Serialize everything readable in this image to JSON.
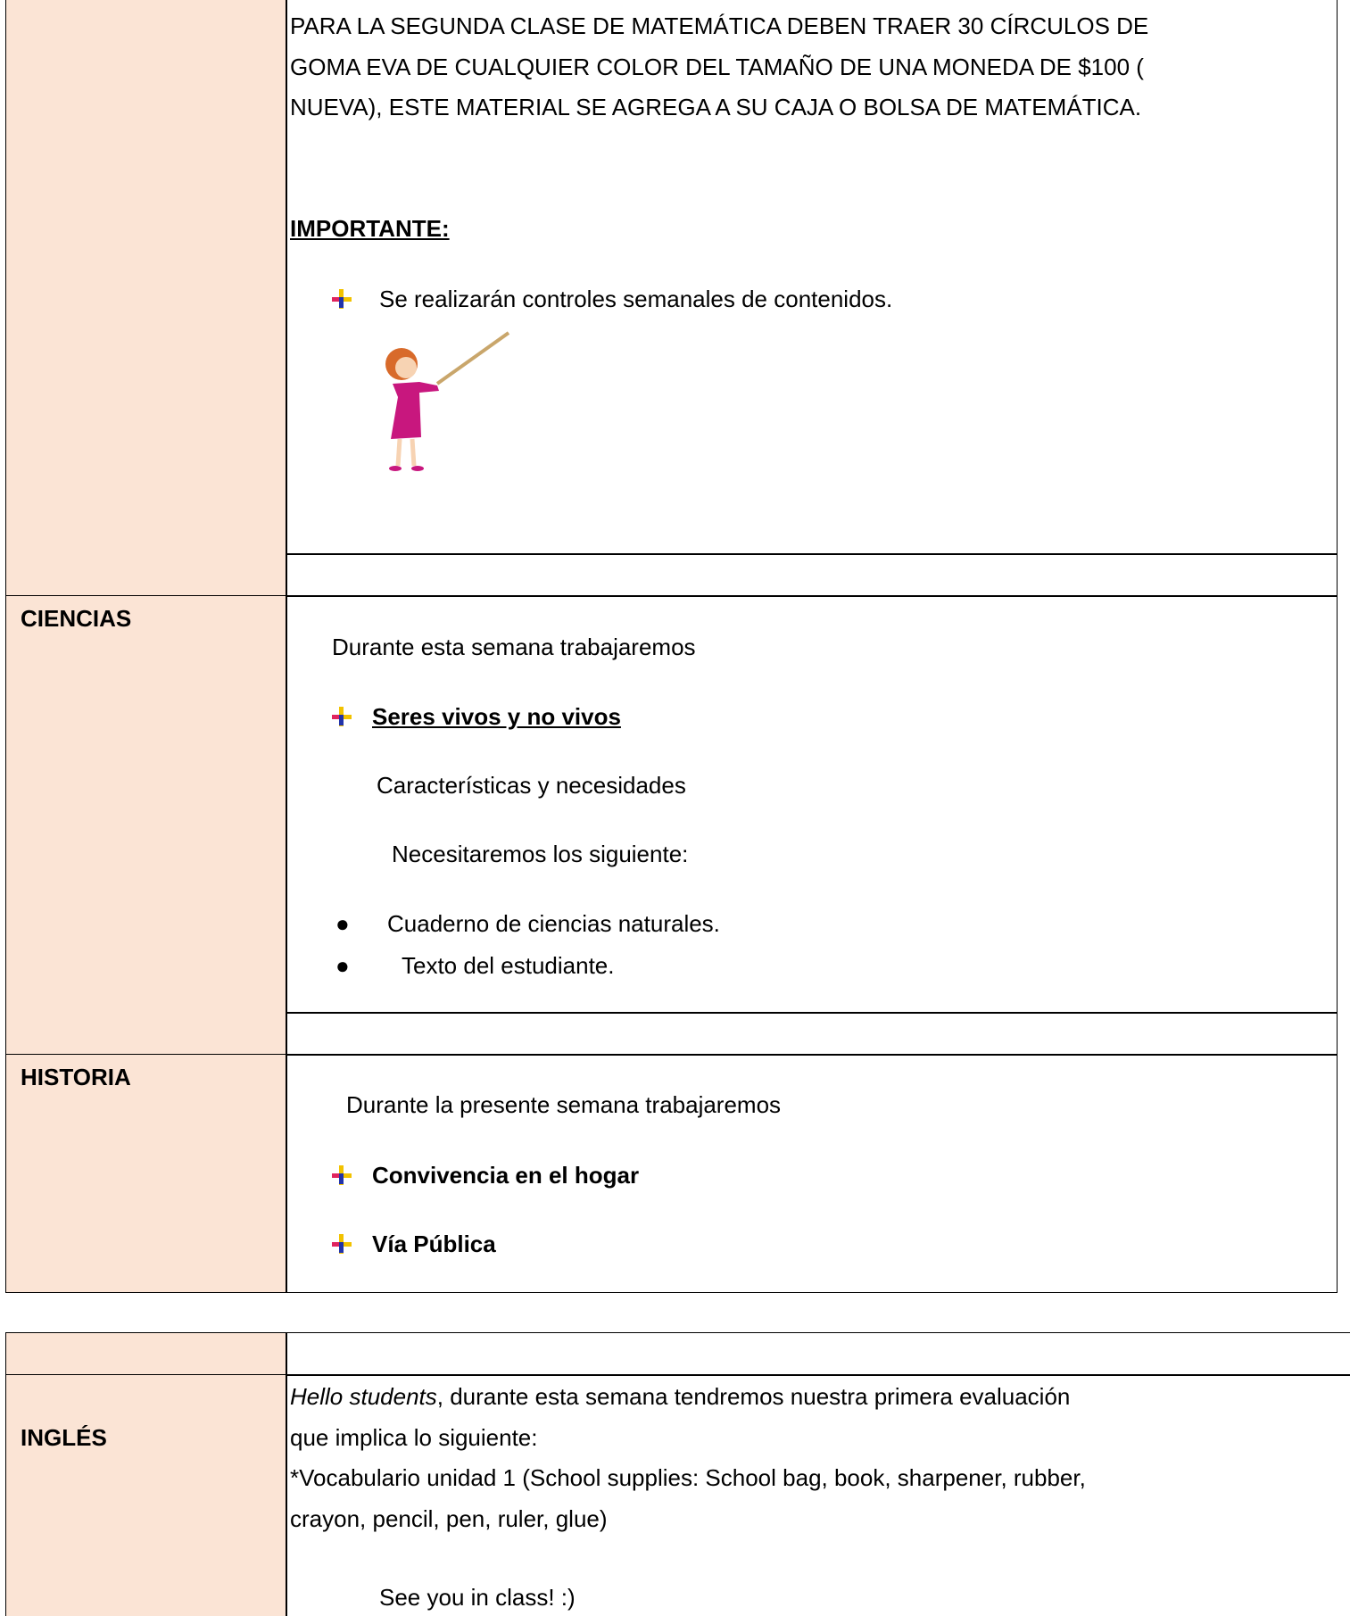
{
  "matematica": {
    "paragraph_lines": [
      " PARA LA SEGUNDA  CLASE DE MATEMÁTICA DEBEN TRAER 30 CÍRCULOS DE",
      "GOMA EVA DE CUALQUIER COLOR DEL TAMAÑO DE UNA MONEDA DE $100 (",
      "NUEVA), ESTE MATERIAL SE AGREGA A SU CAJA O BOLSA DE MATEMÁTICA."
    ],
    "important": "IMPORTANTE:",
    "bullet": "Se realizarán controles semanales de contenidos."
  },
  "ciencias": {
    "label": "CIENCIAS",
    "intro": "Durante  esta semana trabajaremos",
    "topic": "Seres vivos y no vivos",
    "subtopic": "Características y necesidades",
    "needs_intro": "Necesitaremos los siguiente:",
    "needs": [
      "Cuaderno de ciencias naturales.",
      "Texto del estudiante."
    ]
  },
  "historia": {
    "label": "HISTORIA",
    "intro": "Durante la presente semana trabajaremos",
    "topics": [
      "Convivencia en el hogar",
      "Vía Pública"
    ]
  },
  "ingles": {
    "label": "INGLÉS",
    "greeting": "Hello students",
    "line1_rest": ", durante esta semana tendremos nuestra primera evaluación",
    "lines": [
      "que implica lo siguiente:",
      "*Vocabulario unidad 1 (School supplies: School bag, book, sharpener, rubber,",
      "crayon, pencil, pen, ruler, glue)"
    ],
    "closing": "See you in class! :)"
  }
}
